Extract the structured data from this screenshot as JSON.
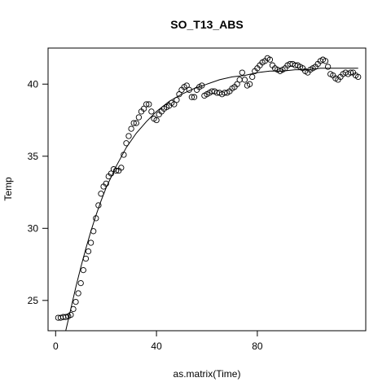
{
  "chart_data": {
    "type": "scatter",
    "title": "SO_T13_ABS",
    "xlabel": "as.matrix(Time)",
    "ylabel": "Temp",
    "xlim": [
      -3,
      123
    ],
    "ylim": [
      22.9,
      42.5
    ],
    "xticks": [
      0,
      40,
      80
    ],
    "yticks": [
      25,
      30,
      35,
      40
    ],
    "grid": false,
    "legend": "none",
    "points": {
      "x": [
        1,
        2,
        3,
        4,
        5,
        6,
        7,
        8,
        9,
        10,
        11,
        12,
        13,
        14,
        15,
        16,
        17,
        18,
        19,
        20,
        21,
        22,
        23,
        24,
        25,
        26,
        27,
        28,
        29,
        30,
        31,
        32,
        33,
        34,
        35,
        36,
        37,
        38,
        39,
        40,
        41,
        42,
        43,
        44,
        45,
        46,
        47,
        48,
        49,
        50,
        51,
        52,
        53,
        54,
        55,
        56,
        57,
        58,
        59,
        60,
        61,
        62,
        63,
        64,
        65,
        66,
        67,
        68,
        69,
        70,
        71,
        72,
        73,
        74,
        75,
        76,
        77,
        78,
        79,
        80,
        81,
        82,
        83,
        84,
        85,
        86,
        87,
        88,
        89,
        90,
        91,
        92,
        93,
        94,
        95,
        96,
        97,
        98,
        99,
        100,
        101,
        102,
        103,
        104,
        105,
        106,
        107,
        108,
        109,
        110,
        111,
        112,
        113,
        114,
        115,
        116,
        117,
        118,
        119,
        120
      ],
      "y": [
        23.8,
        23.8,
        23.85,
        23.85,
        23.9,
        24.0,
        24.4,
        24.9,
        25.5,
        26.2,
        27.1,
        27.9,
        28.4,
        29.0,
        29.8,
        30.7,
        31.6,
        32.4,
        32.9,
        33.1,
        33.6,
        33.8,
        34.1,
        34.0,
        34.0,
        34.2,
        35.1,
        35.9,
        36.4,
        36.9,
        37.3,
        37.3,
        37.7,
        38.1,
        38.3,
        38.6,
        38.6,
        38.1,
        37.6,
        37.5,
        37.9,
        38.1,
        38.3,
        38.4,
        38.5,
        38.7,
        38.6,
        38.9,
        39.3,
        39.6,
        39.8,
        39.9,
        39.6,
        39.1,
        39.1,
        39.6,
        39.8,
        39.9,
        39.2,
        39.3,
        39.4,
        39.5,
        39.5,
        39.4,
        39.4,
        39.3,
        39.4,
        39.4,
        39.5,
        39.7,
        39.8,
        40.0,
        40.3,
        40.8,
        40.3,
        39.9,
        40.0,
        40.5,
        40.9,
        41.1,
        41.3,
        41.5,
        41.6,
        41.8,
        41.7,
        41.3,
        41.1,
        41.0,
        40.9,
        41.0,
        41.1,
        41.3,
        41.4,
        41.4,
        41.3,
        41.3,
        41.2,
        41.1,
        40.9,
        40.8,
        41.0,
        41.1,
        41.2,
        41.4,
        41.6,
        41.7,
        41.6,
        41.2,
        40.7,
        40.6,
        40.4,
        40.3,
        40.5,
        40.7,
        40.8,
        40.7,
        40.8,
        40.8,
        40.6,
        40.5
      ]
    },
    "fit_line": {
      "x": [
        4,
        6,
        8,
        10,
        12,
        14,
        16,
        18,
        20,
        24,
        28,
        32,
        36,
        40,
        45,
        50,
        55,
        60,
        65,
        70,
        75,
        80,
        85,
        90,
        95,
        100,
        105,
        110,
        115,
        120
      ],
      "y": [
        22.9,
        24.4,
        25.9,
        27.3,
        28.6,
        29.8,
        30.9,
        31.9,
        32.8,
        34.3,
        35.6,
        36.6,
        37.4,
        38.1,
        38.8,
        39.3,
        39.7,
        40.0,
        40.3,
        40.5,
        40.6,
        40.8,
        40.9,
        40.9,
        41.0,
        41.0,
        41.1,
        41.1,
        41.1,
        41.1
      ]
    }
  }
}
